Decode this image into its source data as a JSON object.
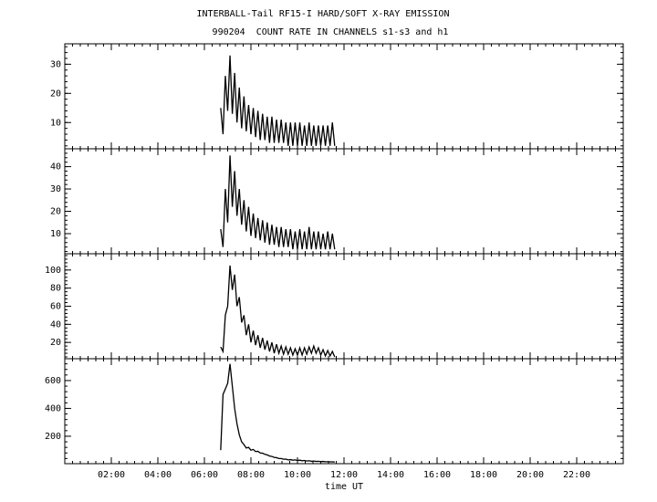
{
  "chart_data": [
    {
      "type": "line",
      "title": "INTERBALL-Tail RF15-I HARD/SOFT X-RAY EMISSION",
      "subtitle": "990204  COUNT RATE IN CHANNELS s1-s3 and h1",
      "color": "#000000",
      "xlim": [
        0,
        24
      ],
      "ylim": [
        1,
        37
      ],
      "yticks": [
        10,
        20,
        30
      ],
      "x": [
        6.7,
        6.8,
        6.9,
        7.0,
        7.1,
        7.2,
        7.3,
        7.4,
        7.5,
        7.6,
        7.7,
        7.8,
        7.9,
        8.0,
        8.1,
        8.2,
        8.3,
        8.4,
        8.5,
        8.6,
        8.7,
        8.8,
        8.9,
        9.0,
        9.1,
        9.2,
        9.3,
        9.4,
        9.5,
        9.6,
        9.7,
        9.8,
        9.9,
        10.0,
        10.1,
        10.2,
        10.3,
        10.4,
        10.5,
        10.6,
        10.7,
        10.8,
        10.9,
        11.0,
        11.1,
        11.2,
        11.3,
        11.4,
        11.5,
        11.6
      ],
      "values": [
        15,
        6,
        26,
        14,
        33,
        13,
        27,
        10,
        22,
        8,
        19,
        7,
        16,
        6,
        15,
        5,
        14,
        4,
        13,
        4,
        12,
        3,
        12,
        3,
        11,
        3,
        11,
        3,
        10,
        2,
        10,
        2,
        10,
        2,
        10,
        2,
        9,
        2,
        10,
        2,
        9,
        2,
        9,
        2,
        9,
        2,
        9,
        2,
        10,
        2
      ]
    },
    {
      "type": "line",
      "color": "#000000",
      "xlim": [
        0,
        24
      ],
      "ylim": [
        1,
        48
      ],
      "yticks": [
        10,
        20,
        30,
        40
      ],
      "x": [
        6.7,
        6.8,
        6.9,
        7.0,
        7.1,
        7.2,
        7.3,
        7.4,
        7.5,
        7.6,
        7.7,
        7.8,
        7.9,
        8.0,
        8.1,
        8.2,
        8.3,
        8.4,
        8.5,
        8.6,
        8.7,
        8.8,
        8.9,
        9.0,
        9.1,
        9.2,
        9.3,
        9.4,
        9.5,
        9.6,
        9.7,
        9.8,
        9.9,
        10.0,
        10.1,
        10.2,
        10.3,
        10.4,
        10.5,
        10.6,
        10.7,
        10.8,
        10.9,
        11.0,
        11.1,
        11.2,
        11.3,
        11.4,
        11.5,
        11.6
      ],
      "values": [
        12,
        4,
        30,
        15,
        45,
        22,
        38,
        18,
        30,
        14,
        25,
        11,
        22,
        9,
        19,
        8,
        17,
        7,
        16,
        6,
        15,
        5,
        14,
        5,
        13,
        4,
        13,
        4,
        12,
        4,
        12,
        3,
        11,
        3,
        12,
        3,
        11,
        3,
        13,
        3,
        11,
        3,
        11,
        3,
        10,
        3,
        11,
        3,
        10,
        3
      ]
    },
    {
      "type": "line",
      "color": "#000000",
      "xlim": [
        0,
        24
      ],
      "ylim": [
        2,
        118
      ],
      "yticks": [
        20,
        40,
        60,
        80,
        100
      ],
      "x": [
        6.7,
        6.8,
        6.9,
        7.0,
        7.1,
        7.2,
        7.3,
        7.4,
        7.5,
        7.6,
        7.7,
        7.8,
        7.9,
        8.0,
        8.1,
        8.2,
        8.3,
        8.4,
        8.5,
        8.6,
        8.7,
        8.8,
        8.9,
        9.0,
        9.1,
        9.2,
        9.3,
        9.4,
        9.5,
        9.6,
        9.7,
        9.8,
        9.9,
        10.0,
        10.1,
        10.2,
        10.3,
        10.4,
        10.5,
        10.6,
        10.7,
        10.8,
        10.9,
        11.0,
        11.1,
        11.2,
        11.3,
        11.4,
        11.5,
        11.6
      ],
      "values": [
        15,
        10,
        50,
        60,
        105,
        78,
        95,
        60,
        70,
        42,
        50,
        28,
        40,
        20,
        33,
        17,
        28,
        14,
        25,
        12,
        22,
        10,
        20,
        8,
        18,
        8,
        16,
        7,
        15,
        7,
        14,
        6,
        13,
        6,
        14,
        6,
        14,
        7,
        15,
        8,
        16,
        8,
        14,
        6,
        12,
        5,
        11,
        5,
        10,
        4
      ]
    },
    {
      "type": "line",
      "color": "#000000",
      "xlim": [
        0,
        24
      ],
      "ylim": [
        3,
        757
      ],
      "yticks": [
        200,
        400,
        600
      ],
      "xlabel": "time UT",
      "xticks": [
        {
          "value": 2,
          "label": "02:00"
        },
        {
          "value": 4,
          "label": "04:00"
        },
        {
          "value": 6,
          "label": "06:00"
        },
        {
          "value": 8,
          "label": "08:00"
        },
        {
          "value": 10,
          "label": "10:00"
        },
        {
          "value": 12,
          "label": "12:00"
        },
        {
          "value": 14,
          "label": "14:00"
        },
        {
          "value": 16,
          "label": "16:00"
        },
        {
          "value": 18,
          "label": "18:00"
        },
        {
          "value": 20,
          "label": "20:00"
        },
        {
          "value": 22,
          "label": "22:00"
        }
      ],
      "x": [
        6.7,
        6.8,
        6.9,
        7.0,
        7.1,
        7.2,
        7.3,
        7.4,
        7.5,
        7.6,
        7.7,
        7.8,
        7.9,
        8.0,
        8.1,
        8.2,
        8.3,
        8.4,
        8.5,
        8.6,
        8.7,
        8.8,
        8.9,
        9.0,
        9.1,
        9.2,
        9.3,
        9.4,
        9.5,
        9.6,
        9.7,
        9.8,
        9.9,
        10.0,
        10.1,
        10.2,
        10.3,
        10.4,
        10.5,
        10.6,
        10.7,
        10.8,
        10.9,
        11.0,
        11.1,
        11.2,
        11.3,
        11.4,
        11.5,
        11.6
      ],
      "values": [
        100,
        500,
        540,
        580,
        720,
        560,
        400,
        290,
        210,
        160,
        140,
        115,
        120,
        100,
        105,
        90,
        92,
        80,
        78,
        70,
        66,
        58,
        55,
        48,
        46,
        40,
        40,
        35,
        36,
        30,
        32,
        28,
        30,
        26,
        28,
        24,
        26,
        22,
        24,
        20,
        22,
        19,
        20,
        18,
        19,
        17,
        17,
        16,
        16,
        15
      ]
    }
  ]
}
